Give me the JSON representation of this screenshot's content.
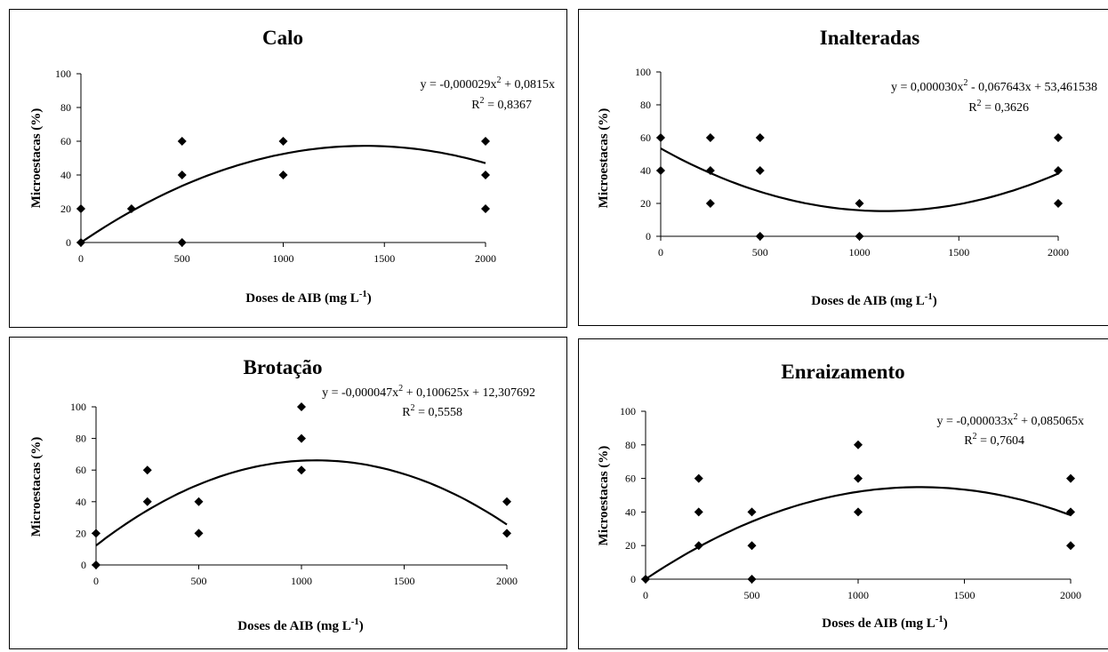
{
  "chart_data": [
    {
      "type": "scatter",
      "title": "Calo",
      "xlabel": "Doses de AIB (mg L",
      "xlabel_sup": "-1",
      "xlabel_end": ")",
      "ylabel": "Microestacas (%)",
      "xticks": [
        "0",
        "500",
        "1000",
        "1500",
        "2000"
      ],
      "yticks": [
        "0",
        "20",
        "40",
        "60",
        "80",
        "100"
      ],
      "xlim": [
        0,
        2000
      ],
      "ylim": [
        0,
        100
      ],
      "equation": {
        "pre": "y = -0,000029x",
        "sup": "2",
        "post": " + 0,0815x"
      },
      "r2": {
        "pre": "R",
        "sup": "2",
        "post": " = 0,8367"
      },
      "coef": [
        -2.9e-05,
        0.0815,
        0
      ],
      "points": [
        [
          0,
          0
        ],
        [
          0,
          20
        ],
        [
          250,
          20
        ],
        [
          500,
          0
        ],
        [
          500,
          40
        ],
        [
          500,
          60
        ],
        [
          1000,
          40
        ],
        [
          1000,
          60
        ],
        [
          2000,
          20
        ],
        [
          2000,
          40
        ],
        [
          2000,
          60
        ]
      ]
    },
    {
      "type": "scatter",
      "title": "Inalteradas",
      "xlabel": "Doses de AIB (mg L",
      "xlabel_sup": "-1",
      "xlabel_end": ")",
      "ylabel": "Microestacas (%)",
      "xticks": [
        "0",
        "500",
        "1000",
        "1500",
        "2000"
      ],
      "yticks": [
        "0",
        "20",
        "40",
        "60",
        "80",
        "100"
      ],
      "xlim": [
        0,
        2000
      ],
      "ylim": [
        0,
        100
      ],
      "equation": {
        "pre": "y = 0,000030x",
        "sup": "2",
        "post": " - 0,067643x + 53,461538"
      },
      "r2": {
        "pre": "R",
        "sup": "2",
        "post": " = 0,3626"
      },
      "coef": [
        3e-05,
        -0.067643,
        53.461538
      ],
      "points": [
        [
          0,
          40
        ],
        [
          0,
          60
        ],
        [
          250,
          20
        ],
        [
          250,
          40
        ],
        [
          250,
          60
        ],
        [
          500,
          0
        ],
        [
          500,
          40
        ],
        [
          500,
          60
        ],
        [
          1000,
          0
        ],
        [
          1000,
          20
        ],
        [
          2000,
          20
        ],
        [
          2000,
          40
        ],
        [
          2000,
          60
        ]
      ]
    },
    {
      "type": "scatter",
      "title": "Brotação",
      "xlabel": "Doses de AIB (mg L",
      "xlabel_sup": "-1",
      "xlabel_end": ")",
      "ylabel": "Microestacas (%)",
      "xticks": [
        "0",
        "500",
        "1000",
        "1500",
        "2000"
      ],
      "yticks": [
        "0",
        "20",
        "40",
        "60",
        "80",
        "100"
      ],
      "xlim": [
        0,
        2000
      ],
      "ylim": [
        0,
        100
      ],
      "equation": {
        "pre": "y = -0,000047x",
        "sup": "2",
        "post": " + 0,100625x + 12,307692"
      },
      "r2": {
        "pre": "R",
        "sup": "2",
        "post": " = 0,5558"
      },
      "coef": [
        -4.7e-05,
        0.100625,
        12.307692
      ],
      "points": [
        [
          0,
          0
        ],
        [
          0,
          20
        ],
        [
          250,
          40
        ],
        [
          250,
          60
        ],
        [
          500,
          20
        ],
        [
          500,
          40
        ],
        [
          1000,
          60
        ],
        [
          1000,
          80
        ],
        [
          1000,
          100
        ],
        [
          2000,
          20
        ],
        [
          2000,
          40
        ]
      ]
    },
    {
      "type": "scatter",
      "title": "Enraizamento",
      "xlabel": "Doses de AIB (mg L",
      "xlabel_sup": "-1",
      "xlabel_end": ")",
      "ylabel": "Microestacas (%)",
      "xticks": [
        "0",
        "500",
        "1000",
        "1500",
        "2000"
      ],
      "yticks": [
        "0",
        "20",
        "40",
        "60",
        "80",
        "100"
      ],
      "xlim": [
        0,
        2000
      ],
      "ylim": [
        0,
        100
      ],
      "equation": {
        "pre": "y = -0,000033x",
        "sup": "2",
        "post": " + 0,085065x"
      },
      "r2": {
        "pre": "R",
        "sup": "2",
        "post": " = 0,7604"
      },
      "coef": [
        -3.3e-05,
        0.085065,
        0
      ],
      "points": [
        [
          0,
          0
        ],
        [
          250,
          20
        ],
        [
          250,
          40
        ],
        [
          250,
          60
        ],
        [
          500,
          0
        ],
        [
          500,
          20
        ],
        [
          500,
          40
        ],
        [
          1000,
          40
        ],
        [
          1000,
          60
        ],
        [
          1000,
          80
        ],
        [
          2000,
          20
        ],
        [
          2000,
          40
        ],
        [
          2000,
          60
        ]
      ]
    }
  ]
}
